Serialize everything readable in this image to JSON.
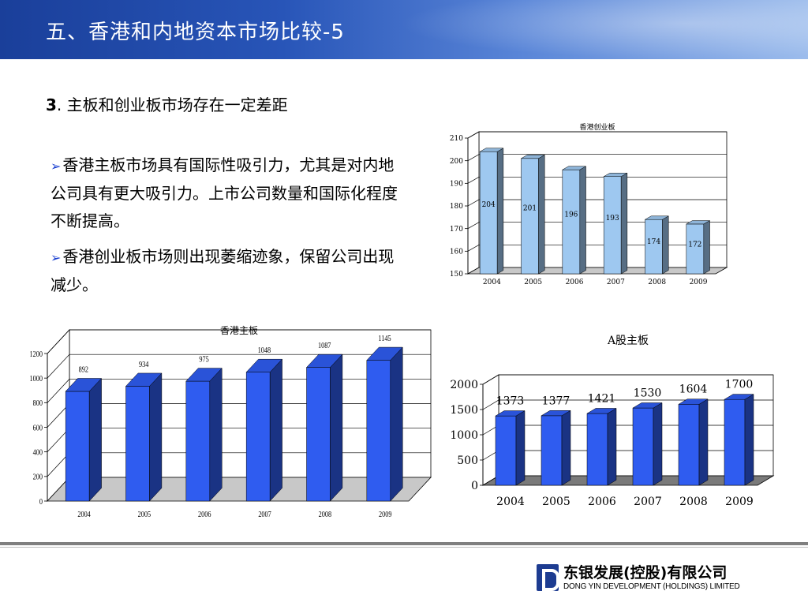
{
  "header": {
    "title": "五、香港和内地资本市场比较-5"
  },
  "section": {
    "number": "3",
    "separator": ".",
    "title": "主板和创业板市场存在一定差距"
  },
  "bullets": [
    "香港主板市场具有国际性吸引力，尤其是对内地公司具有更大吸引力。上市公司数量和国际化程度不断提高。",
    "香港创业板市场则出现萎缩迹象，保留公司出现减少。"
  ],
  "chart_data": [
    {
      "id": "hk-gem",
      "type": "bar",
      "title": "香港创业板",
      "categories": [
        "2004",
        "2005",
        "2006",
        "2007",
        "2008",
        "2009"
      ],
      "values": [
        204,
        201,
        196,
        193,
        174,
        172
      ],
      "ylim": [
        150,
        210
      ],
      "yticks": [
        150,
        160,
        170,
        180,
        190,
        200,
        210
      ],
      "grid": true,
      "legend": "none",
      "color": "#9ec8f0"
    },
    {
      "id": "hk-main",
      "type": "bar",
      "title": "香港主板",
      "categories": [
        "2004",
        "2005",
        "2006",
        "2007",
        "2008",
        "2009"
      ],
      "values": [
        892,
        934,
        975,
        1048,
        1087,
        1145
      ],
      "ylim": [
        0,
        1200
      ],
      "yticks": [
        0,
        200,
        400,
        600,
        800,
        1000,
        1200
      ],
      "grid": true,
      "legend": "none",
      "color": "#2f5cf0"
    },
    {
      "id": "a-main",
      "type": "bar",
      "title": "A股主板",
      "categories": [
        "2004",
        "2005",
        "2006",
        "2007",
        "2008",
        "2009"
      ],
      "values": [
        1373,
        1377,
        1421,
        1530,
        1604,
        1700
      ],
      "ylim": [
        0,
        2000
      ],
      "yticks": [
        0,
        500,
        1000,
        1500,
        2000
      ],
      "grid": true,
      "legend": "none",
      "color": "#2f5cf0"
    }
  ],
  "footer": {
    "logo_cn": "东银发展(控股)有限公司",
    "logo_en": "DONG YIN DEVELOPMENT (HOLDINGS) LIMITED"
  }
}
